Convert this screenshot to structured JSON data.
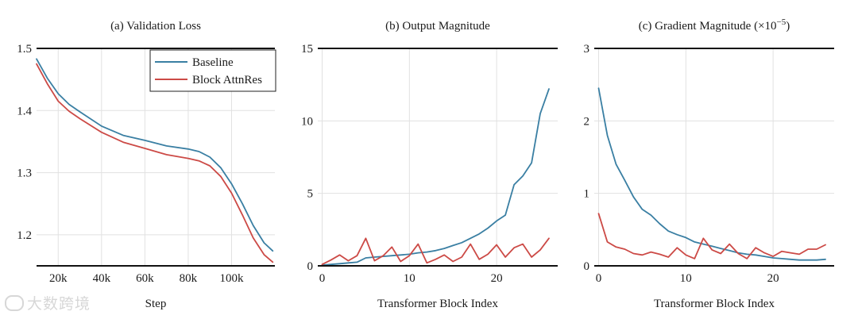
{
  "colors": {
    "baseline": "#3a7fa3",
    "attnres": "#cc4a46",
    "grid": "#e1e1e1",
    "axis": "#111111"
  },
  "watermark": "大数跨境",
  "chart_data": [
    {
      "type": "line",
      "title": "(a) Validation Loss",
      "xlabel": "Step",
      "ylabel": "",
      "xlim": [
        10000,
        120000
      ],
      "ylim": [
        1.15,
        1.5
      ],
      "xticks": [
        20000,
        40000,
        60000,
        80000,
        100000
      ],
      "xtick_labels": [
        "20k",
        "40k",
        "60k",
        "80k",
        "100k"
      ],
      "yticks": [
        1.2,
        1.3,
        1.4,
        1.5
      ],
      "ytick_labels": [
        "1.2",
        "1.3",
        "1.4",
        "1.5"
      ],
      "grid": true,
      "legend": {
        "placement": "top-right",
        "entries": [
          "Baseline",
          "Block AttnRes"
        ]
      },
      "series": [
        {
          "name": "Baseline",
          "color_key": "baseline",
          "x": [
            10000,
            15000,
            20000,
            25000,
            30000,
            40000,
            50000,
            60000,
            70000,
            80000,
            85000,
            90000,
            95000,
            100000,
            105000,
            110000,
            115000,
            119000
          ],
          "y": [
            1.483,
            1.452,
            1.427,
            1.41,
            1.398,
            1.375,
            1.36,
            1.352,
            1.343,
            1.338,
            1.334,
            1.325,
            1.308,
            1.282,
            1.25,
            1.215,
            1.187,
            1.174
          ]
        },
        {
          "name": "Block AttnRes",
          "color_key": "attnres",
          "x": [
            10000,
            15000,
            20000,
            25000,
            30000,
            40000,
            50000,
            60000,
            70000,
            80000,
            85000,
            90000,
            95000,
            100000,
            105000,
            110000,
            115000,
            119000
          ],
          "y": [
            1.475,
            1.443,
            1.415,
            1.399,
            1.387,
            1.365,
            1.349,
            1.339,
            1.329,
            1.323,
            1.319,
            1.311,
            1.294,
            1.267,
            1.232,
            1.195,
            1.168,
            1.156
          ]
        }
      ]
    },
    {
      "type": "line",
      "title": "(b) Output Magnitude",
      "xlabel": "Transformer Block Index",
      "ylabel": "",
      "xlim": [
        -0.5,
        27
      ],
      "ylim": [
        0,
        15
      ],
      "xticks": [
        0,
        10,
        20
      ],
      "xtick_labels": [
        "0",
        "10",
        "20"
      ],
      "yticks": [
        0,
        5,
        10,
        15
      ],
      "ytick_labels": [
        "0",
        "5",
        "10",
        "15"
      ],
      "grid": true,
      "series": [
        {
          "name": "",
          "color_key": "baseline",
          "x": [
            0,
            1,
            2,
            3,
            4,
            5,
            6,
            7,
            8,
            9,
            10,
            11,
            12,
            13,
            14,
            15,
            16,
            17,
            18,
            19,
            20,
            21,
            22,
            23,
            24,
            25,
            26
          ],
          "y": [
            0.05,
            0.1,
            0.15,
            0.2,
            0.25,
            0.55,
            0.6,
            0.65,
            0.7,
            0.75,
            0.8,
            0.9,
            0.95,
            1.05,
            1.2,
            1.4,
            1.6,
            1.9,
            2.2,
            2.6,
            3.1,
            3.5,
            5.6,
            6.2,
            7.1,
            10.5,
            12.2
          ]
        },
        {
          "name": "",
          "color_key": "attnres",
          "x": [
            0,
            1,
            2,
            3,
            4,
            5,
            6,
            7,
            8,
            9,
            10,
            11,
            12,
            13,
            14,
            15,
            16,
            17,
            18,
            19,
            20,
            21,
            22,
            23,
            24,
            25,
            26
          ],
          "y": [
            0.1,
            0.4,
            0.75,
            0.35,
            0.7,
            1.9,
            0.35,
            0.7,
            1.3,
            0.3,
            0.7,
            1.5,
            0.2,
            0.45,
            0.75,
            0.3,
            0.6,
            1.5,
            0.45,
            0.8,
            1.45,
            0.6,
            1.25,
            1.5,
            0.6,
            1.1,
            1.9
          ]
        }
      ]
    },
    {
      "type": "line",
      "title": "(c) Gradient Magnitude (×10",
      "title_sup": "−5",
      "title_end": ")",
      "xlabel": "Transformer Block Index",
      "ylabel": "",
      "xlim": [
        -0.5,
        27
      ],
      "ylim": [
        0,
        3
      ],
      "xticks": [
        0,
        10,
        20
      ],
      "xtick_labels": [
        "0",
        "10",
        "20"
      ],
      "yticks": [
        0,
        1,
        2,
        3
      ],
      "ytick_labels": [
        "0",
        "1",
        "2",
        "3"
      ],
      "grid": true,
      "series": [
        {
          "name": "",
          "color_key": "baseline",
          "x": [
            0,
            1,
            2,
            3,
            4,
            5,
            6,
            7,
            8,
            9,
            10,
            11,
            12,
            13,
            14,
            15,
            16,
            17,
            18,
            19,
            20,
            21,
            22,
            23,
            24,
            25,
            26
          ],
          "y": [
            2.45,
            1.8,
            1.4,
            1.18,
            0.95,
            0.78,
            0.7,
            0.58,
            0.48,
            0.43,
            0.39,
            0.33,
            0.3,
            0.27,
            0.24,
            0.21,
            0.18,
            0.16,
            0.15,
            0.13,
            0.11,
            0.1,
            0.09,
            0.08,
            0.08,
            0.08,
            0.09
          ]
        },
        {
          "name": "",
          "color_key": "attnres",
          "x": [
            0,
            1,
            2,
            3,
            4,
            5,
            6,
            7,
            8,
            9,
            10,
            11,
            12,
            13,
            14,
            15,
            16,
            17,
            18,
            19,
            20,
            21,
            22,
            23,
            24,
            25,
            26
          ],
          "y": [
            0.72,
            0.33,
            0.26,
            0.23,
            0.17,
            0.15,
            0.19,
            0.16,
            0.12,
            0.25,
            0.15,
            0.1,
            0.38,
            0.22,
            0.17,
            0.3,
            0.17,
            0.1,
            0.25,
            0.18,
            0.13,
            0.2,
            0.18,
            0.16,
            0.23,
            0.23,
            0.29
          ]
        }
      ]
    }
  ]
}
